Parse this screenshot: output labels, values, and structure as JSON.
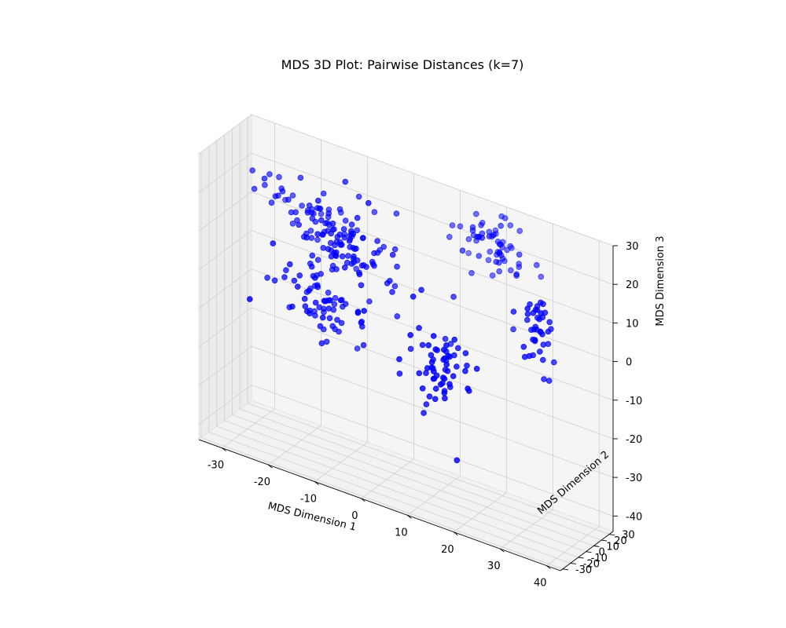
{
  "chart_data": {
    "type": "scatter",
    "projection": "3d",
    "title": "MDS 3D Plot: Pairwise Distances (k=7)",
    "xlabel": "MDS Dimension 1",
    "ylabel": "MDS Dimension 2",
    "zlabel": "MDS Dimension 3",
    "xlim": [
      -35,
      43
    ],
    "ylim": [
      -33,
      35
    ],
    "zlim": [
      -44,
      30
    ],
    "xticks": [
      -30,
      -20,
      -10,
      0,
      10,
      20,
      30,
      40
    ],
    "yticks": [
      -30,
      -20,
      -10,
      0,
      10,
      20,
      30
    ],
    "zticks": [
      -40,
      -30,
      -20,
      -10,
      0,
      10,
      20,
      30
    ],
    "grid": true,
    "marker_color": "#0000ff",
    "marker": "circle",
    "clusters": [
      {
        "center": [
          -10,
          5,
          12
        ],
        "spread": [
          6,
          4,
          5
        ],
        "count": 95
      },
      {
        "center": [
          -14,
          2,
          -3
        ],
        "spread": [
          5,
          4,
          5
        ],
        "count": 70
      },
      {
        "center": [
          -16,
          14,
          14
        ],
        "spread": [
          4,
          3,
          3
        ],
        "count": 25
      },
      {
        "center": [
          -26,
          12,
          18
        ],
        "spread": [
          3,
          3,
          3
        ],
        "count": 16
      },
      {
        "center": [
          13,
          -9,
          -8
        ],
        "spread": [
          4,
          3,
          5
        ],
        "count": 60
      },
      {
        "center": [
          19,
          22,
          22
        ],
        "spread": [
          5,
          4,
          4
        ],
        "count": 60
      },
      {
        "center": [
          33,
          -2,
          9
        ],
        "spread": [
          2,
          3,
          5
        ],
        "count": 40
      }
    ],
    "outliers": [
      [
        12,
        4,
        -3
      ],
      [
        13,
        5,
        -4
      ],
      [
        9,
        -6,
        -22
      ],
      [
        17,
        -11,
        -30
      ],
      [
        8,
        -3,
        9
      ],
      [
        26,
        8,
        5
      ]
    ]
  }
}
